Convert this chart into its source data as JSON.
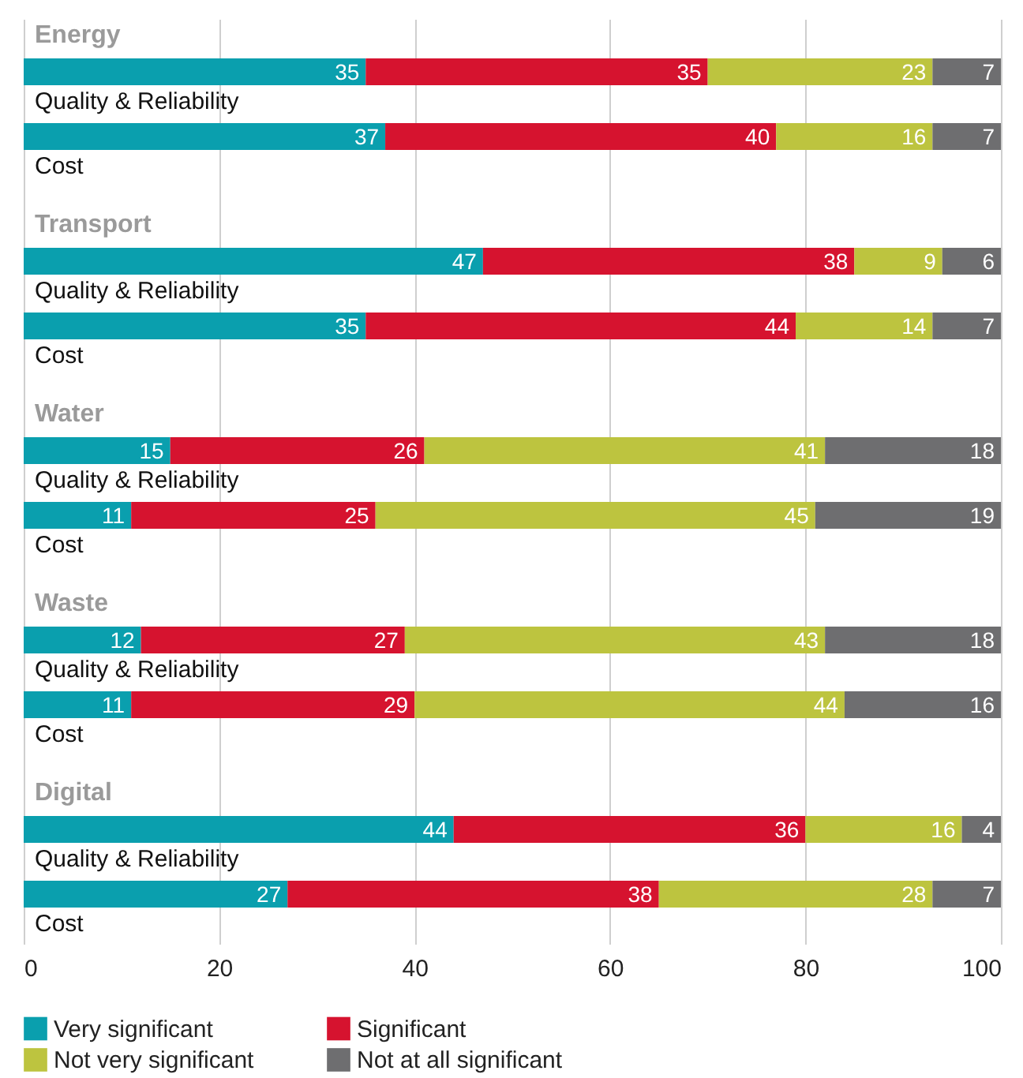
{
  "chart_data": {
    "type": "bar",
    "orientation": "horizontal",
    "stacked": true,
    "categories": [
      "Quality & Reliability",
      "Cost",
      "Quality & Reliability",
      "Cost",
      "Quality & Reliability",
      "Cost",
      "Quality & Reliability",
      "Cost",
      "Quality & Reliability",
      "Cost"
    ],
    "annotations": [
      "Energy",
      "Transport",
      "Water",
      "Waste",
      "Digital"
    ],
    "series": [
      {
        "name": "Very significant",
        "color": "#0a9fae",
        "values": [
          35,
          37,
          47,
          35,
          15,
          11,
          12,
          11,
          44,
          27
        ]
      },
      {
        "name": "Significant",
        "color": "#d6132f",
        "values": [
          35,
          40,
          38,
          44,
          26,
          25,
          27,
          29,
          36,
          38
        ]
      },
      {
        "name": "Not very significant",
        "color": "#bdc43f",
        "values": [
          23,
          16,
          9,
          14,
          41,
          45,
          43,
          44,
          16,
          28
        ]
      },
      {
        "name": "Not at all significant",
        "color": "#6e6e70",
        "values": [
          7,
          7,
          6,
          7,
          18,
          19,
          18,
          16,
          4,
          7
        ]
      }
    ],
    "xlim": [
      0,
      100
    ],
    "xticks": [
      0,
      20,
      40,
      60,
      80,
      100
    ],
    "grid": "x",
    "legend": "bottom left",
    "data_labels": true
  }
}
